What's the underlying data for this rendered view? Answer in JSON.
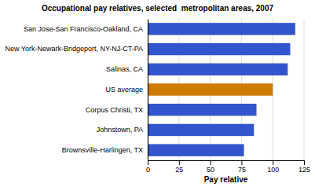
{
  "chart_data": {
    "type": "bar",
    "orientation": "horizontal",
    "title": "Occupational pay relatives, selected  metropolitan areas, 2007",
    "categories": [
      "San Jose-San Francisco-Oakland, CA",
      "New York-Newark-Bridgeport, NY-NJ-CT-PA",
      "Salinas, CA",
      "US average",
      "Corpus Christi, TX",
      "Johnstown, PA",
      "Brownsville-Harlingen, TX"
    ],
    "values": [
      118,
      114,
      112,
      100,
      87,
      85,
      77
    ],
    "colors": [
      "#3355cc",
      "#3355cc",
      "#3355cc",
      "#cc7a00",
      "#3355cc",
      "#3355cc",
      "#3355cc"
    ],
    "xlabel": "Pay relative",
    "xlim": [
      0,
      125
    ],
    "xticks": [
      0,
      25,
      50,
      75,
      100,
      125
    ],
    "grid": true
  }
}
